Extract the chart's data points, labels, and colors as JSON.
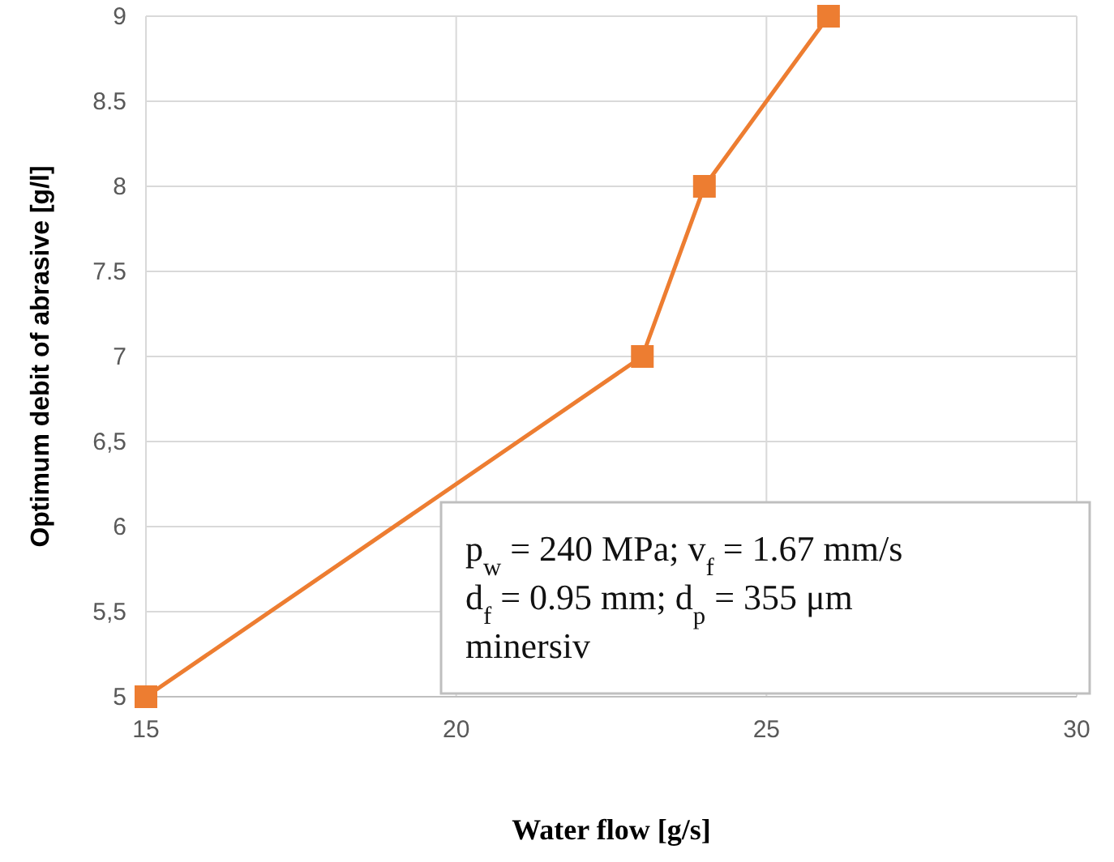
{
  "chart_data": {
    "type": "line",
    "xlabel": "Water flow [g/s]",
    "ylabel": "Optimum debit of abrasive [g/l]",
    "x": [
      15,
      23,
      24,
      26
    ],
    "series": [
      {
        "color": "#ed7d31",
        "values": [
          5,
          7,
          8,
          9
        ]
      }
    ],
    "xlim": [
      15,
      30
    ],
    "xticks": [
      15,
      20,
      25,
      30
    ],
    "ylim": [
      5,
      9
    ],
    "yticks": [
      5,
      {
        "value": 5.5,
        "label": "5,5"
      },
      6,
      {
        "value": 6.5,
        "label": "6,5"
      },
      7,
      7.5,
      8,
      8.5,
      9
    ],
    "grid": true,
    "marker": "square",
    "line_style": "solid",
    "annotations": [
      "p$_{w}$ = 240 MPa; v$_{f}$ = 1.67 mm/s\nd$_{f}$ = 0.95 mm; d$_{p}$ = 355 μm\nminersiv"
    ]
  }
}
